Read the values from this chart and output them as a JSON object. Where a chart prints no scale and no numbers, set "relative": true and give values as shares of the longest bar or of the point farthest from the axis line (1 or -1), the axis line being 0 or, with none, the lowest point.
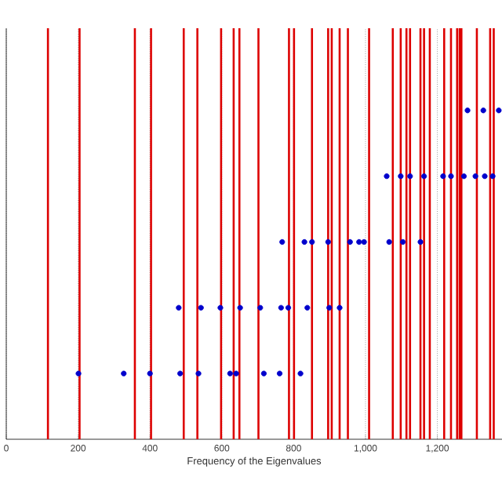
{
  "chart_data": {
    "type": "scatter",
    "xlabel": "Frequency of the Eigenvalues",
    "relative": true,
    "grid": "x",
    "tick_labels": "x",
    "xlim": [
      0,
      1380
    ],
    "xticks": [
      0,
      200,
      400,
      600,
      800,
      {
        "value": 1000,
        "label": "1,000"
      },
      {
        "value": 1200,
        "label": "1,200"
      }
    ],
    "series": [
      {
        "color": "#0000cc",
        "marker": "circle",
        "x": [
          201,
          327,
          400,
          484,
          535,
          623,
          640,
          717,
          761,
          819,
          480,
          542,
          596,
          651,
          707,
          765,
          785,
          838,
          899,
          928,
          768,
          830,
          851,
          896,
          957,
          982,
          996,
          1066,
          1104,
          1153,
          1059,
          1098,
          1124,
          1163,
          1216,
          1238,
          1274,
          1306,
          1332,
          1354,
          1284,
          1328,
          1371
        ],
        "values": [
          0.2,
          0.2,
          0.2,
          0.2,
          0.2,
          0.2,
          0.2,
          0.2,
          0.2,
          0.2,
          0.4,
          0.4,
          0.4,
          0.4,
          0.4,
          0.4,
          0.4,
          0.4,
          0.4,
          0.4,
          0.6,
          0.6,
          0.6,
          0.6,
          0.6,
          0.6,
          0.6,
          0.6,
          0.6,
          0.6,
          0.8,
          0.8,
          0.8,
          0.8,
          0.8,
          0.8,
          0.8,
          0.8,
          0.8,
          0.8,
          1,
          1,
          1
        ]
      }
    ],
    "ref_lines": [
      {
        "axis": "x",
        "value": 116,
        "color": "#dd0000"
      },
      {
        "axis": "x",
        "value": 204,
        "color": "#dd0000"
      },
      {
        "axis": "x",
        "value": 358,
        "color": "#dd0000"
      },
      {
        "axis": "x",
        "value": 403,
        "color": "#dd0000"
      },
      {
        "axis": "x",
        "value": 494,
        "color": "#dd0000"
      },
      {
        "axis": "x",
        "value": 532,
        "color": "#dd0000"
      },
      {
        "axis": "x",
        "value": 598,
        "color": "#dd0000"
      },
      {
        "axis": "x",
        "value": 633,
        "color": "#dd0000"
      },
      {
        "axis": "x",
        "value": 649,
        "color": "#dd0000"
      },
      {
        "axis": "x",
        "value": 702,
        "color": "#dd0000"
      },
      {
        "axis": "x",
        "value": 787,
        "color": "#dd0000"
      },
      {
        "axis": "x",
        "value": 801,
        "color": "#dd0000"
      },
      {
        "axis": "x",
        "value": 851,
        "color": "#dd0000"
      },
      {
        "axis": "x",
        "value": 896,
        "color": "#dd0000"
      },
      {
        "axis": "x",
        "value": 906,
        "color": "#dd0000"
      },
      {
        "axis": "x",
        "value": 928,
        "color": "#dd0000"
      },
      {
        "axis": "x",
        "value": 951,
        "color": "#dd0000"
      },
      {
        "axis": "x",
        "value": 1010,
        "color": "#dd0000"
      },
      {
        "axis": "x",
        "value": 1076,
        "color": "#dd0000"
      },
      {
        "axis": "x",
        "value": 1098,
        "color": "#dd0000"
      },
      {
        "axis": "x",
        "value": 1114,
        "color": "#dd0000"
      },
      {
        "axis": "x",
        "value": 1124,
        "color": "#dd0000"
      },
      {
        "axis": "x",
        "value": 1153,
        "color": "#dd0000"
      },
      {
        "axis": "x",
        "value": 1163,
        "color": "#dd0000"
      },
      {
        "axis": "x",
        "value": 1179,
        "color": "#dd0000"
      },
      {
        "axis": "x",
        "value": 1219,
        "color": "#dd0000"
      },
      {
        "axis": "x",
        "value": 1238,
        "color": "#dd0000"
      },
      {
        "axis": "x",
        "value": 1255,
        "color": "#dd0000"
      },
      {
        "axis": "x",
        "value": 1262,
        "color": "#dd0000"
      },
      {
        "axis": "x",
        "value": 1267,
        "color": "#dd0000"
      },
      {
        "axis": "x",
        "value": 1310,
        "color": "#dd0000"
      },
      {
        "axis": "x",
        "value": 1347,
        "color": "#dd0000"
      },
      {
        "axis": "x",
        "value": 1357,
        "color": "#dd0000"
      }
    ]
  }
}
